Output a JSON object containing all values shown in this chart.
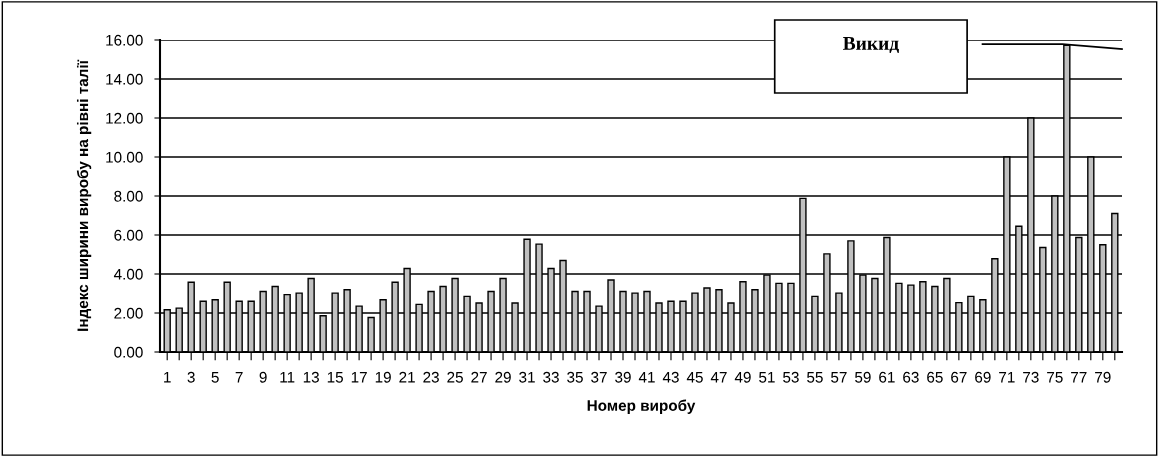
{
  "chart_data": {
    "type": "bar",
    "xlabel": "Номер виробу",
    "ylabel": "Індекс ширини виробу на рівні талії",
    "categories": [
      "1",
      null,
      "3",
      null,
      "5",
      null,
      "7",
      null,
      "9",
      null,
      "11",
      null,
      "13",
      null,
      "15",
      null,
      "17",
      null,
      "19",
      null,
      "21",
      null,
      "23",
      null,
      "25",
      null,
      "27",
      null,
      "29",
      null,
      "31",
      null,
      "33",
      null,
      "35",
      null,
      "37",
      null,
      "39",
      null,
      "41",
      null,
      "43",
      null,
      "45",
      null,
      "47",
      null,
      "49",
      null,
      "51",
      null,
      "53",
      null,
      "55",
      null,
      "57",
      null,
      "59",
      null,
      "61",
      null,
      "63",
      null,
      "65",
      null,
      "67",
      null,
      "69",
      null,
      "71",
      null,
      "73",
      null,
      "75",
      null,
      "77",
      null,
      "79",
      null
    ],
    "values": [
      2.17,
      2.25,
      3.58,
      2.6,
      2.68,
      3.58,
      2.6,
      2.6,
      3.1,
      3.36,
      2.94,
      3.02,
      3.77,
      1.86,
      3.02,
      3.19,
      2.35,
      1.77,
      2.68,
      3.58,
      4.28,
      2.44,
      3.1,
      3.36,
      3.77,
      2.85,
      2.51,
      3.1,
      3.77,
      2.51,
      5.78,
      5.53,
      4.28,
      4.69,
      3.1,
      3.1,
      2.35,
      3.69,
      3.1,
      3.02,
      3.1,
      2.51,
      2.6,
      2.6,
      3.02,
      3.28,
      3.19,
      2.51,
      3.6,
      3.19,
      3.94,
      3.52,
      3.52,
      7.88,
      2.85,
      5.03,
      3.02,
      5.7,
      3.94,
      3.77,
      5.87,
      3.52,
      3.43,
      3.6,
      3.36,
      3.77,
      2.53,
      2.85,
      2.68,
      4.78,
      10.0,
      6.45,
      12.0,
      5.36,
      8.0,
      15.73,
      5.87,
      10.0,
      5.5,
      7.1
    ],
    "color": "#c0c0c0",
    "ylim": [
      0,
      16
    ],
    "yticks": [
      {
        "value": 0,
        "label": "0.00"
      },
      {
        "value": 2,
        "label": "2.00"
      },
      {
        "value": 4,
        "label": "4.00"
      },
      {
        "value": 6,
        "label": "6.00"
      },
      {
        "value": 8,
        "label": "8.00"
      },
      {
        "value": 10,
        "label": "10.00"
      },
      {
        "value": 12,
        "label": "12.00"
      },
      {
        "value": 14,
        "label": "14.00"
      },
      {
        "value": 16,
        "label": "16.00"
      }
    ],
    "grid": "y",
    "annotations": [
      "Викид"
    ]
  }
}
